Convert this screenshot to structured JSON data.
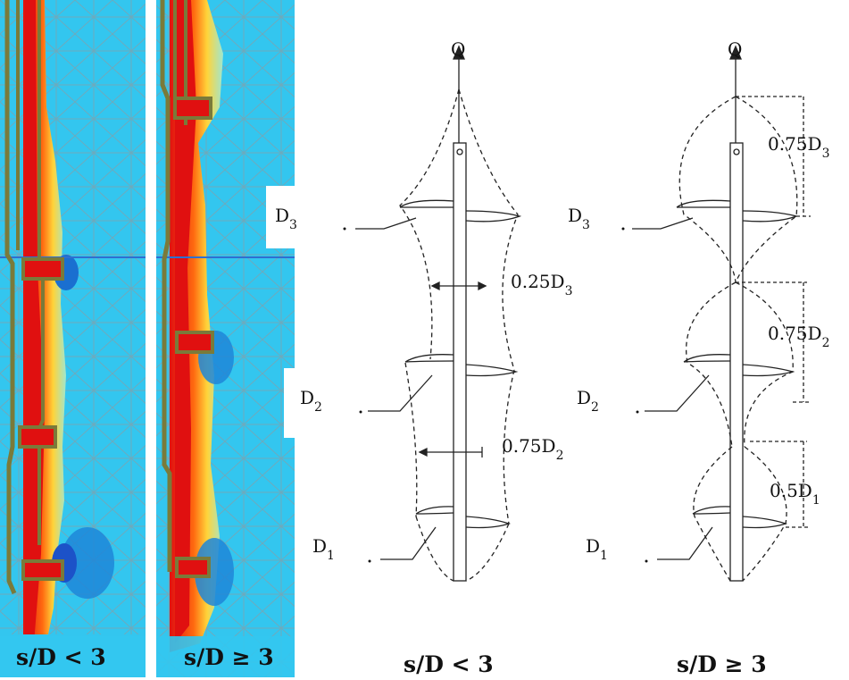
{
  "top_load": "Q",
  "panels": {
    "fe_left": {
      "caption": "s/D < 3"
    },
    "fe_right": {
      "caption": "s/D ≥ 3"
    },
    "diagram_left": {
      "caption": "s/D < 3",
      "helix_labels": [
        {
          "main": "D",
          "sub": "3"
        },
        {
          "main": "D",
          "sub": "2"
        },
        {
          "main": "D",
          "sub": "1"
        }
      ],
      "dims": [
        {
          "main": "0.25D",
          "sub": "3"
        },
        {
          "main": "0.75D",
          "sub": "2"
        }
      ]
    },
    "diagram_right": {
      "caption": "s/D ≥ 3",
      "helix_labels": [
        {
          "main": "D",
          "sub": "3"
        },
        {
          "main": "D",
          "sub": "2"
        },
        {
          "main": "D",
          "sub": "1"
        }
      ],
      "dims": [
        {
          "main": "0.75D",
          "sub": "3"
        },
        {
          "main": "0.75D",
          "sub": "2"
        },
        {
          "main": "0.5D",
          "sub": "1"
        }
      ]
    }
  },
  "colors": {
    "soil": "#2fc7ee",
    "soil_dark": "#1a9ed6",
    "mesh": "#9a9a9a",
    "pile_outline": "#7a7a3a",
    "high_stress": "#e01010",
    "mid_stress": "#ffd020",
    "low_stress": "#3060d0"
  }
}
